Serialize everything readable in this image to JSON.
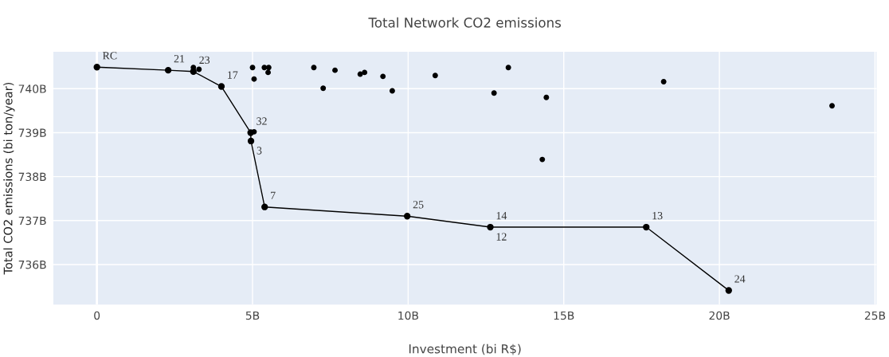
{
  "chart_data": {
    "type": "scatter",
    "title": "Total Network CO2 emissions",
    "xlabel": "Investment (bi R$)",
    "ylabel": "Total CO2 emissions (bi ton/year)",
    "series": [
      {
        "type": "line",
        "color": "#000000",
        "x": [
          0,
          2.29,
          3.1,
          4.0,
          4.94,
          4.95,
          5.39,
          9.97,
          12.64,
          17.65,
          20.3
        ],
        "values": [
          740.49,
          740.42,
          740.39,
          740.05,
          739.0,
          738.81,
          737.31,
          737.1,
          736.85,
          736.85,
          735.41
        ]
      },
      {
        "color": "#000000",
        "x": [
          3.1,
          3.28,
          5.05,
          5.0,
          5.05,
          5.38,
          5.52,
          5.5,
          6.97,
          7.27,
          7.65,
          8.46,
          8.6,
          9.19,
          9.49,
          10.87,
          12.76,
          13.22,
          14.44,
          14.31,
          18.21,
          23.62
        ],
        "values": [
          740.48,
          740.44,
          739.02,
          740.48,
          740.22,
          740.48,
          740.48,
          740.37,
          740.48,
          740.01,
          740.42,
          740.33,
          740.37,
          740.28,
          739.95,
          740.3,
          739.9,
          740.48,
          739.8,
          738.39,
          740.16,
          739.61
        ]
      }
    ],
    "marker": "circle",
    "xlim": [
      -1.4,
      25.05
    ],
    "ylim": [
      735.09,
      740.84
    ],
    "xticks": [
      {
        "value": 0,
        "label": "0"
      },
      {
        "value": 5,
        "label": "5B"
      },
      {
        "value": 10,
        "label": "10B"
      },
      {
        "value": 15,
        "label": "15B"
      },
      {
        "value": 20,
        "label": "20B"
      },
      {
        "value": 25,
        "label": "25B"
      }
    ],
    "yticks": [
      {
        "value": 736,
        "label": "736B"
      },
      {
        "value": 737,
        "label": "737B"
      },
      {
        "value": 738,
        "label": "738B"
      },
      {
        "value": 739,
        "label": "739B"
      },
      {
        "value": 740,
        "label": "740B"
      }
    ],
    "grid": true,
    "legend": false,
    "annotations": [
      {
        "text": "RC",
        "x": 0,
        "y": 740.49
      },
      {
        "text": "21",
        "x": 2.29,
        "y": 740.42
      },
      {
        "text": "23",
        "x": 3.1,
        "y": 740.39
      },
      {
        "text": "17",
        "x": 4.0,
        "y": 740.05
      },
      {
        "text": "32",
        "x": 4.94,
        "y": 739.0
      },
      {
        "text": "3",
        "x": 4.95,
        "y": 738.81
      },
      {
        "text": "7",
        "x": 5.39,
        "y": 737.31
      },
      {
        "text": "25",
        "x": 9.97,
        "y": 737.1
      },
      {
        "text": "14",
        "x": 12.64,
        "y": 736.85
      },
      {
        "text": "12",
        "x": 12.64,
        "y": 736.85
      },
      {
        "text": "13",
        "x": 17.65,
        "y": 736.85
      },
      {
        "text": "24",
        "x": 20.3,
        "y": 735.41
      }
    ]
  }
}
